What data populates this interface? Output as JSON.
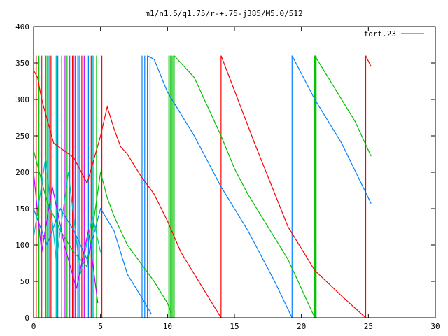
{
  "chart_data": {
    "type": "line",
    "title": "m1/n1.5/q1.75/r-+.75-j385/M5.0/512",
    "xlim": [
      0,
      30
    ],
    "ylim": [
      0,
      400
    ],
    "xticks": [
      "0",
      "5",
      "10",
      "15",
      "20",
      "25",
      "30"
    ],
    "yticks": [
      "0",
      "50",
      "100",
      "150",
      "200",
      "250",
      "300",
      "350",
      "400"
    ],
    "grid": false,
    "legend": {
      "position": "top-right",
      "entries": [
        "fort.23"
      ]
    },
    "series": [
      {
        "name": "fort.23",
        "color": "#ff0000",
        "segments": [
          [
            [
              0,
              340
            ],
            [
              0.3,
              330
            ],
            [
              0.6,
              300
            ],
            [
              1.5,
              240
            ],
            [
              3,
              220
            ],
            [
              4,
              185
            ],
            [
              5,
              250
            ],
            [
              5.5,
              290
            ],
            [
              6,
              260
            ],
            [
              6.5,
              235
            ],
            [
              7,
              225
            ],
            [
              8,
              195
            ],
            [
              9,
              170
            ],
            [
              10,
              133
            ],
            [
              11,
              90
            ],
            [
              12,
              60
            ],
            [
              13,
              30
            ],
            [
              14,
              0
            ]
          ],
          [
            [
              14,
              360
            ],
            [
              16.5,
              240
            ],
            [
              19,
              125
            ],
            [
              21,
              65
            ],
            [
              23,
              30
            ],
            [
              24.8,
              0
            ]
          ],
          [
            [
              24.8,
              360
            ],
            [
              25.2,
              345
            ]
          ]
        ]
      },
      {
        "color": "#00c000",
        "segments": [
          [
            [
              0,
              230
            ],
            [
              1,
              160
            ],
            [
              2,
              120
            ],
            [
              3,
              90
            ],
            [
              4,
              70
            ],
            [
              5,
              200
            ],
            [
              5.5,
              165
            ],
            [
              6,
              140
            ],
            [
              7,
              100
            ],
            [
              8,
              75
            ],
            [
              9,
              50
            ],
            [
              10,
              20
            ],
            [
              10.3,
              5
            ]
          ],
          [
            [
              10.5,
              360
            ],
            [
              12,
              330
            ],
            [
              13,
              290
            ],
            [
              14,
              250
            ],
            [
              15,
              205
            ],
            [
              16,
              170
            ],
            [
              17,
              140
            ],
            [
              18,
              110
            ],
            [
              19,
              80
            ],
            [
              20,
              40
            ],
            [
              20.5,
              20
            ],
            [
              21,
              0
            ]
          ],
          [
            [
              21,
              360
            ],
            [
              22,
              330
            ],
            [
              23,
              300
            ],
            [
              24,
              270
            ],
            [
              25.2,
              222
            ]
          ]
        ]
      },
      {
        "color": "#0080ff",
        "segments": [
          [
            [
              0,
              150
            ],
            [
              1,
              100
            ],
            [
              2,
              150
            ],
            [
              3,
              120
            ],
            [
              4,
              80
            ],
            [
              5,
              150
            ],
            [
              6,
              120
            ],
            [
              7,
              60
            ],
            [
              8,
              30
            ],
            [
              8.8,
              5
            ]
          ],
          [
            [
              8.5,
              360
            ],
            [
              9,
              355
            ],
            [
              10,
              310
            ],
            [
              12,
              250
            ],
            [
              14,
              180
            ],
            [
              16,
              120
            ],
            [
              18,
              50
            ],
            [
              19.3,
              0
            ]
          ],
          [
            [
              19.3,
              360
            ],
            [
              21,
              300
            ],
            [
              23,
              240
            ],
            [
              25.2,
              157
            ]
          ]
        ]
      },
      {
        "color": "#c000ff",
        "segments": [
          [
            [
              0,
              200
            ],
            [
              0.6,
              90
            ],
            [
              1.4,
              180
            ],
            [
              2.3,
              100
            ],
            [
              3.2,
              40
            ],
            [
              4.1,
              120
            ],
            [
              4.8,
              20
            ]
          ]
        ]
      },
      {
        "color": "#00c0c0",
        "segments": [
          [
            [
              0,
              110
            ],
            [
              0.9,
              220
            ],
            [
              1.7,
              80
            ],
            [
              2.6,
              200
            ],
            [
              3.5,
              60
            ],
            [
              4.4,
              140
            ],
            [
              5,
              90
            ]
          ]
        ]
      }
    ],
    "vertical_sweeps": [
      {
        "color": "#ff0000",
        "x": [
          0.2,
          0.7,
          1.3,
          2.1,
          2.9,
          3.6,
          4.3,
          5.1,
          14,
          24.8
        ]
      },
      {
        "color": "#00c000",
        "x": [
          0.4,
          1.0,
          1.8,
          2.5,
          3.3,
          4.0,
          4.7,
          10.1,
          10.2,
          10.3,
          10.4,
          10.5,
          20.95,
          21.0,
          21.05,
          21.1
        ]
      },
      {
        "color": "#0080ff",
        "x": [
          0.6,
          1.2,
          1.9,
          2.7,
          3.4,
          4.1,
          8.1,
          8.3,
          8.5,
          8.7,
          19.3
        ]
      },
      {
        "color": "#c000ff",
        "x": [
          0.9,
          1.6,
          2.3,
          3.1,
          3.8,
          4.5
        ]
      },
      {
        "color": "#00c0c0",
        "x": [
          1.1,
          1.7,
          2.4,
          3.0,
          3.7,
          4.4
        ]
      }
    ]
  }
}
